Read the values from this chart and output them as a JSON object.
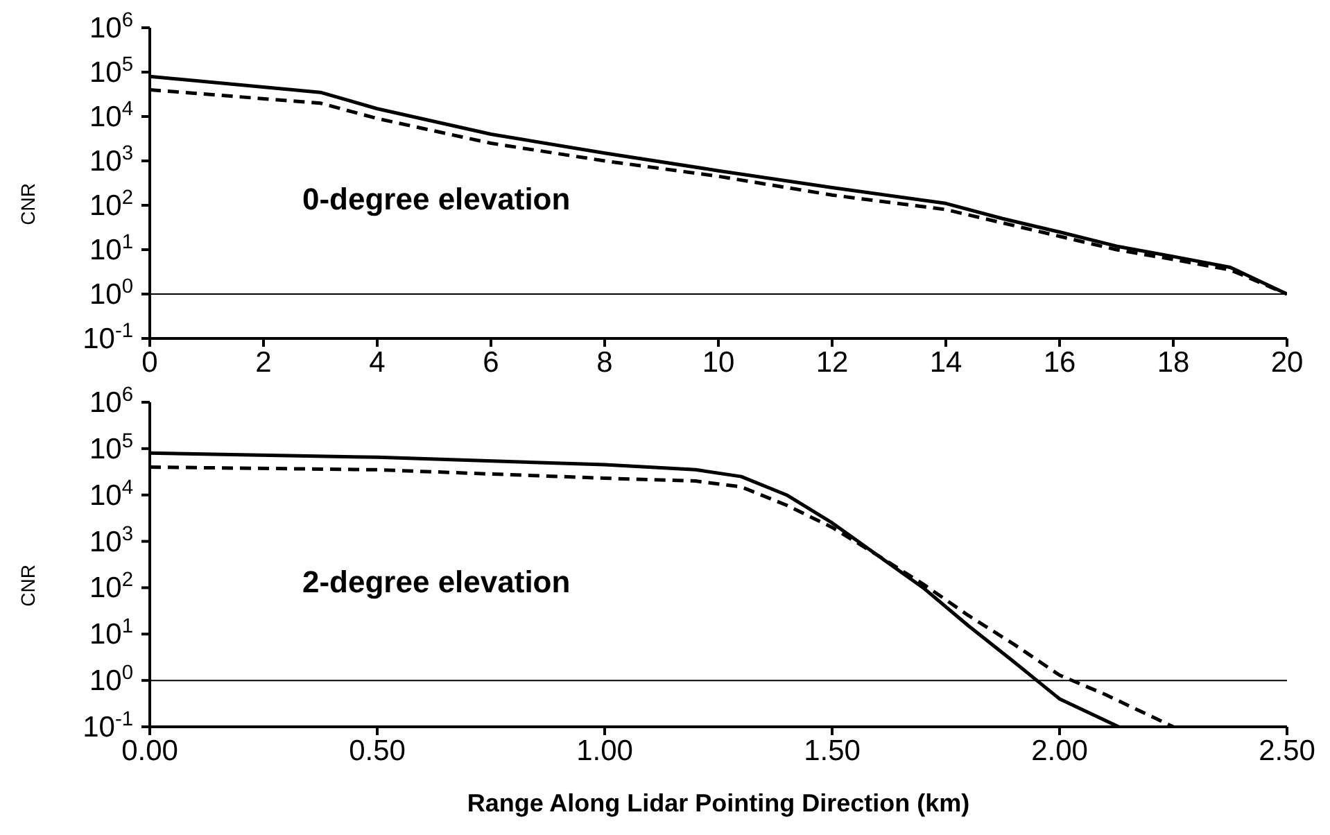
{
  "chart_data": [
    {
      "type": "line",
      "ylabel": "CNR",
      "log": "y",
      "xlim": [
        0,
        20
      ],
      "xticks": [
        0,
        2,
        4,
        6,
        8,
        10,
        12,
        14,
        16,
        18,
        20
      ],
      "ylim": [
        0.1,
        1000000
      ],
      "yticks": [
        {
          "value": 0.1,
          "label": "10$^{-1}$"
        },
        {
          "value": 1,
          "label": "10$^{0}$"
        },
        {
          "value": 10,
          "label": "10$^{1}$"
        },
        {
          "value": 100,
          "label": "10$^{2}$"
        },
        {
          "value": 1000,
          "label": "10$^{3}$"
        },
        {
          "value": 10000,
          "label": "10$^{4}$"
        },
        {
          "value": 100000,
          "label": "10$^{5}$"
        },
        {
          "value": 1000000,
          "label": "10$^{6}$"
        }
      ],
      "x": [
        0,
        3,
        4,
        6,
        8,
        10,
        12,
        14,
        15,
        16,
        17,
        18,
        19,
        20
      ],
      "series": [
        {
          "color": "#000000",
          "line_style": "solid",
          "values": [
            80000,
            35000,
            15000,
            4000,
            1500,
            600,
            250,
            110,
            50,
            25,
            12,
            7,
            4,
            1
          ]
        },
        {
          "color": "#000000",
          "line_style": "dashed",
          "values": [
            40000,
            20000,
            9000,
            2500,
            1000,
            450,
            170,
            80,
            40,
            20,
            10,
            6,
            3.5,
            1
          ]
        }
      ],
      "ref_lines": [
        {
          "axis": "y",
          "value": 1,
          "color": "#000000"
        }
      ],
      "annotations": [
        "0-degree elevation"
      ],
      "grid": false,
      "marker": "none"
    },
    {
      "type": "line",
      "xlabel": "Range Along Lidar Pointing Direction (km)",
      "ylabel": "CNR",
      "log": "y",
      "xlim": [
        0,
        2.5
      ],
      "xticks": [
        {
          "value": 0,
          "label": "0.00"
        },
        {
          "value": 0.5,
          "label": "0.50"
        },
        {
          "value": 1,
          "label": "1.00"
        },
        {
          "value": 1.5,
          "label": "1.50"
        },
        {
          "value": 2,
          "label": "2.00"
        },
        {
          "value": 2.5,
          "label": "2.50"
        }
      ],
      "ylim": [
        0.1,
        1000000
      ],
      "yticks": [
        {
          "value": 0.1,
          "label": "10$^{-1}$"
        },
        {
          "value": 1,
          "label": "10$^{0}$"
        },
        {
          "value": 10,
          "label": "10$^{1}$"
        },
        {
          "value": 100,
          "label": "10$^{2}$"
        },
        {
          "value": 1000,
          "label": "10$^{3}$"
        },
        {
          "value": 10000,
          "label": "10$^{4}$"
        },
        {
          "value": 100000,
          "label": "10$^{5}$"
        },
        {
          "value": 1000000,
          "label": "10$^{6}$"
        }
      ],
      "series": [
        {
          "color": "#000000",
          "line_style": "solid",
          "x": [
            0,
            0.5,
            1,
            1.2,
            1.3,
            1.4,
            1.5,
            1.6,
            1.7,
            1.8,
            1.9,
            1.95,
            2,
            2.13
          ],
          "values": [
            80000,
            65000,
            45000,
            35000,
            25000,
            10000,
            2500,
            500,
            100,
            15,
            2.5,
            1,
            0.4,
            0.1
          ]
        },
        {
          "color": "#000000",
          "line_style": "dashed",
          "x": [
            0,
            0.5,
            1,
            1.2,
            1.3,
            1.4,
            1.5,
            1.6,
            1.7,
            1.8,
            1.9,
            2,
            2.1,
            2.25
          ],
          "values": [
            40000,
            35000,
            23000,
            20000,
            15000,
            6000,
            2000,
            500,
            120,
            25,
            6,
            1.3,
            0.5,
            0.1
          ]
        }
      ],
      "ref_lines": [
        {
          "axis": "y",
          "value": 1,
          "color": "#000000"
        }
      ],
      "annotations": [
        "2-degree elevation"
      ],
      "grid": false,
      "marker": "none"
    }
  ]
}
